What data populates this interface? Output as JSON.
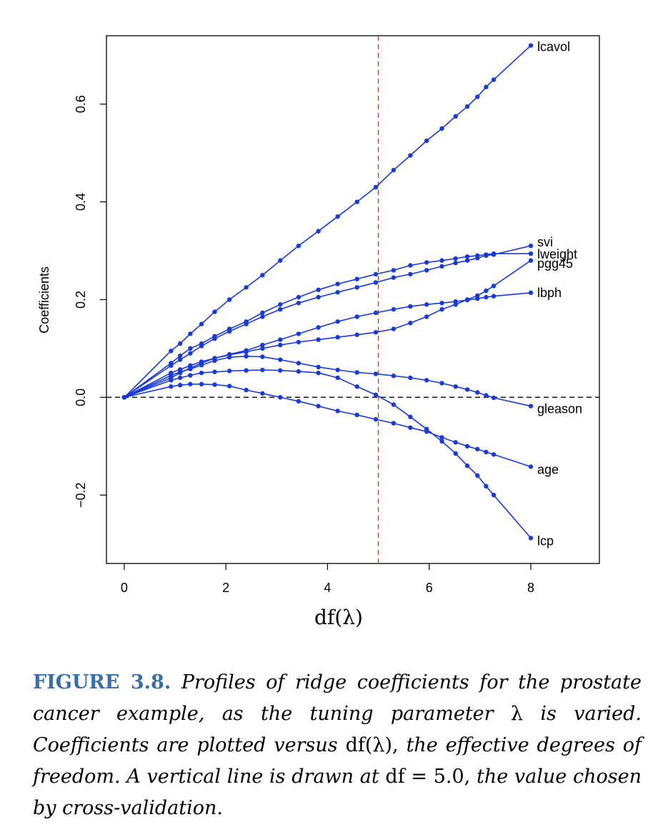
{
  "chart_data": {
    "type": "line",
    "xlabel": "df(λ)",
    "ylabel": "Coefficients",
    "xlim": [
      -0.35,
      9.35
    ],
    "ylim": [
      -0.34,
      0.74
    ],
    "xticks": [
      0,
      2,
      4,
      6,
      8
    ],
    "yticks": [
      -0.2,
      0.0,
      0.2,
      0.4,
      0.6
    ],
    "xtick_labels": [
      "0",
      "2",
      "4",
      "6",
      "8"
    ],
    "ytick_labels": [
      "−0.2",
      "0.0",
      "0.2",
      "0.4",
      "0.6"
    ],
    "reference_lines": [
      {
        "orientation": "horizontal",
        "value": 0.0,
        "style": "dashed",
        "color": "#000000"
      },
      {
        "orientation": "vertical",
        "value": 5.0,
        "style": "dashed",
        "color": "#e03030"
      }
    ],
    "line_color": "#1a3ad8",
    "x": [
      0,
      0.92,
      1.1,
      1.3,
      1.52,
      1.78,
      2.07,
      2.4,
      2.72,
      3.07,
      3.43,
      3.82,
      4.2,
      4.58,
      4.95,
      5.3,
      5.63,
      5.95,
      6.25,
      6.52,
      6.75,
      6.95,
      7.12,
      7.27,
      8.0
    ],
    "series": [
      {
        "name": "lcavol",
        "values": [
          0,
          0.095,
          0.11,
          0.13,
          0.15,
          0.175,
          0.2,
          0.225,
          0.25,
          0.28,
          0.31,
          0.34,
          0.37,
          0.4,
          0.43,
          0.465,
          0.495,
          0.525,
          0.55,
          0.575,
          0.595,
          0.615,
          0.635,
          0.65,
          0.72
        ]
      },
      {
        "name": "svi",
        "values": [
          0,
          0.065,
          0.077,
          0.09,
          0.105,
          0.12,
          0.135,
          0.15,
          0.165,
          0.18,
          0.193,
          0.205,
          0.215,
          0.225,
          0.235,
          0.245,
          0.252,
          0.26,
          0.268,
          0.275,
          0.28,
          0.285,
          0.29,
          0.292,
          0.31
        ]
      },
      {
        "name": "lweight",
        "values": [
          0,
          0.07,
          0.085,
          0.1,
          0.11,
          0.125,
          0.14,
          0.155,
          0.173,
          0.19,
          0.205,
          0.22,
          0.232,
          0.242,
          0.252,
          0.26,
          0.27,
          0.276,
          0.28,
          0.284,
          0.288,
          0.29,
          0.292,
          0.294,
          0.294
        ]
      },
      {
        "name": "pgg45",
        "values": [
          0,
          0.05,
          0.057,
          0.065,
          0.073,
          0.08,
          0.087,
          0.093,
          0.1,
          0.107,
          0.113,
          0.118,
          0.123,
          0.128,
          0.133,
          0.14,
          0.152,
          0.165,
          0.18,
          0.19,
          0.2,
          0.208,
          0.218,
          0.228,
          0.28
        ]
      },
      {
        "name": "lbph",
        "values": [
          0,
          0.04,
          0.05,
          0.06,
          0.07,
          0.08,
          0.088,
          0.096,
          0.107,
          0.118,
          0.13,
          0.143,
          0.155,
          0.165,
          0.173,
          0.18,
          0.186,
          0.19,
          0.193,
          0.196,
          0.199,
          0.202,
          0.205,
          0.207,
          0.214
        ]
      },
      {
        "name": "gleason",
        "values": [
          0,
          0.045,
          0.052,
          0.058,
          0.066,
          0.075,
          0.082,
          0.084,
          0.083,
          0.077,
          0.07,
          0.062,
          0.056,
          0.051,
          0.048,
          0.044,
          0.04,
          0.035,
          0.029,
          0.022,
          0.016,
          0.01,
          0.004,
          -0.001,
          -0.018
        ]
      },
      {
        "name": "age",
        "values": [
          0,
          0.022,
          0.025,
          0.027,
          0.027,
          0.026,
          0.023,
          0.015,
          0.008,
          0.0,
          -0.008,
          -0.018,
          -0.028,
          -0.036,
          -0.045,
          -0.053,
          -0.062,
          -0.07,
          -0.082,
          -0.092,
          -0.1,
          -0.106,
          -0.112,
          -0.117,
          -0.142
        ]
      },
      {
        "name": "lcp",
        "values": [
          0,
          0.035,
          0.04,
          0.045,
          0.05,
          0.052,
          0.054,
          0.055,
          0.056,
          0.055,
          0.053,
          0.05,
          0.04,
          0.022,
          0.005,
          -0.015,
          -0.04,
          -0.065,
          -0.09,
          -0.115,
          -0.14,
          -0.16,
          -0.182,
          -0.2,
          -0.288
        ]
      }
    ]
  },
  "caption": {
    "label": "FIGURE 3.8.",
    "part1": "Profiles of ridge coefficients for the prostate cancer example, as the tuning parameter",
    "lambda": "λ",
    "part2": "is varied. Coefficients are plotted versus",
    "df_lambda": "df(λ),",
    "part3": "the effective degrees of freedom. A vertical line is drawn at",
    "df_eq": "df = 5.0,",
    "part4": "the value chosen by cross-validation."
  }
}
